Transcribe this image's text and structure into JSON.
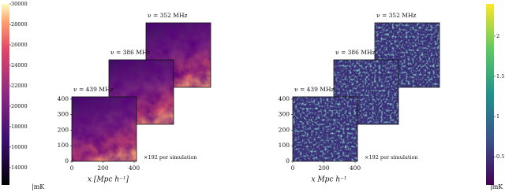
{
  "left": {
    "panels": [
      "ν = 439 MHz",
      "ν = 386 MHz",
      "ν = 352 MHz"
    ],
    "xlabel": "x [Mpc h⁻¹]",
    "note": "×192 per simulation",
    "xlim": [
      0,
      415
    ],
    "xticks": [
      0,
      200,
      400
    ],
    "ylim": [
      0,
      415
    ],
    "yticks": [
      0,
      100,
      200,
      300,
      400
    ]
  },
  "left_colorbar": {
    "lim": [
      12300,
      30000
    ],
    "ticks": [
      14000,
      16000,
      18000,
      20000,
      22000,
      24000,
      26000,
      28000,
      30000
    ],
    "unit": "|mK"
  },
  "right": {
    "panels": [
      "ν = 439 MHz",
      "ν = 386 MHz",
      "ν = 352 MHz"
    ],
    "xlabel": "x  Mpc h⁻¹",
    "note": "×192 per simulation",
    "xlim": [
      0,
      415
    ],
    "xticks": [
      0,
      200,
      400
    ],
    "ylim": [
      0,
      415
    ],
    "yticks": [
      0,
      100,
      200,
      300,
      400
    ]
  },
  "right_colorbar": {
    "lim": [
      0.15,
      2.4
    ],
    "ticks": [
      0.5,
      1.0,
      1.5,
      2.0
    ],
    "unit": "|mK"
  }
}
